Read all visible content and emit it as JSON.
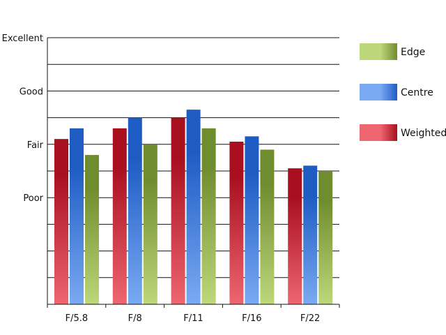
{
  "chart_data": {
    "type": "bar",
    "categories": [
      "F/5.8",
      "F/8",
      "F/11",
      "F/16",
      "F/22"
    ],
    "y_tick_labels": [
      {
        "value": 4,
        "label": "Poor"
      },
      {
        "value": 6,
        "label": "Fair"
      },
      {
        "value": 8,
        "label": "Good"
      },
      {
        "value": 10,
        "label": "Excellent"
      }
    ],
    "ylim": [
      0,
      10
    ],
    "grid": true,
    "legend_position": "right",
    "series": [
      {
        "name": "Weighted",
        "values": [
          6.2,
          6.6,
          7.0,
          6.1,
          5.1
        ],
        "color_light": "#ee6670",
        "color_dark": "#a81020"
      },
      {
        "name": "Centre",
        "values": [
          6.6,
          7.0,
          7.3,
          6.3,
          5.2
        ],
        "color_light": "#7aaaf2",
        "color_dark": "#1e5cc4"
      },
      {
        "name": "Edge",
        "values": [
          5.6,
          6.0,
          6.6,
          5.8,
          5.0
        ],
        "color_light": "#bdd87a",
        "color_dark": "#6f8c2e"
      }
    ],
    "legend_order": [
      "Edge",
      "Centre",
      "Weighted"
    ]
  }
}
